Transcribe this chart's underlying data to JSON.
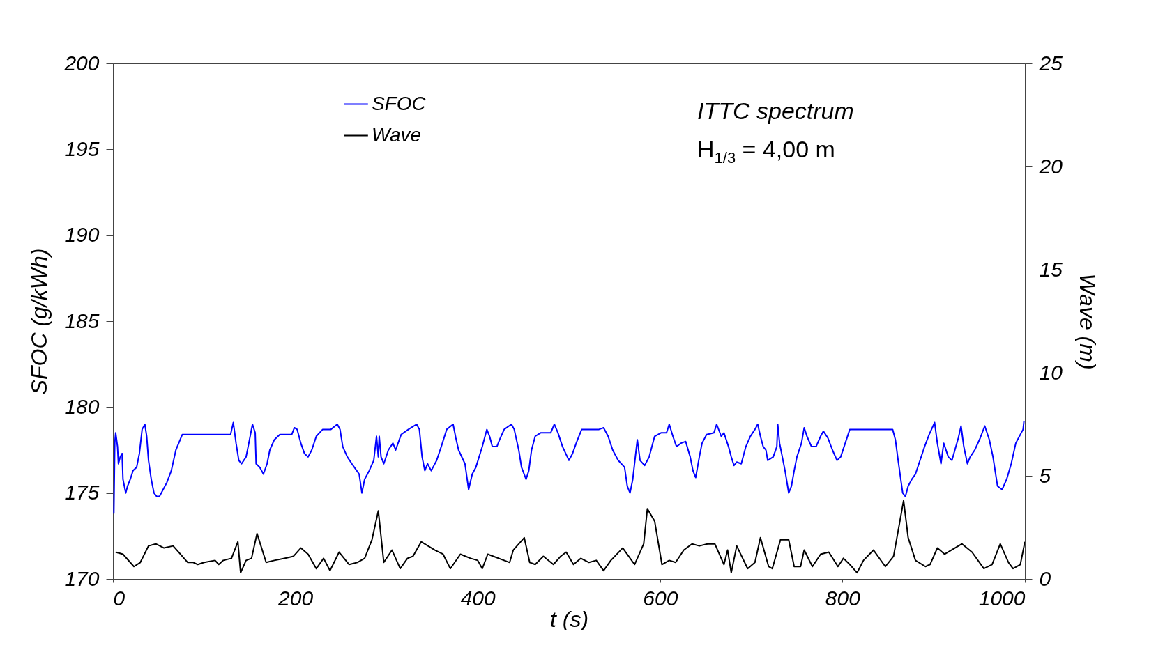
{
  "chart_data": {
    "type": "line",
    "xlabel": "t  (s)",
    "ylabel": "SFOC  (g/kWh)",
    "y2label": "Wave  (m)",
    "xlim": [
      0,
      1000
    ],
    "xticks": [
      0,
      200,
      400,
      600,
      800,
      1000
    ],
    "ylim": [
      170,
      200
    ],
    "yticks": [
      170,
      175,
      180,
      185,
      190,
      195,
      200
    ],
    "y2lim": [
      0,
      25
    ],
    "y2ticks": [
      0,
      5,
      10,
      15,
      20,
      25
    ],
    "grid": false,
    "legend": "top left",
    "marker": "none",
    "line_style": "solid",
    "annotations": [
      "ITTC spectrum",
      "H$_{1/3}$ = 4,00 m"
    ],
    "series": [
      {
        "name": "SFOC",
        "color": "#0000ff",
        "x": [
          1,
          2,
          3,
          5,
          6,
          8,
          10,
          11,
          14,
          16,
          19,
          22,
          26,
          29,
          32,
          35,
          37,
          39,
          42,
          45,
          48,
          51,
          55,
          59,
          64,
          69,
          76,
          84,
          100,
          116,
          129,
          132,
          135,
          138,
          141,
          146,
          149,
          153,
          156,
          157,
          161,
          165,
          169,
          172,
          177,
          183,
          196,
          199,
          202,
          206,
          210,
          214,
          218,
          223,
          230,
          239,
          246,
          249,
          252,
          257,
          262,
          270,
          273,
          276,
          281,
          286,
          289,
          291,
          292,
          294,
          297,
          302,
          307,
          310,
          316,
          324,
          333,
          336,
          339,
          342,
          345,
          349,
          355,
          360,
          366,
          373,
          376,
          379,
          386,
          390,
          394,
          398,
          405,
          410,
          413,
          416,
          421,
          424,
          429,
          437,
          440,
          445,
          448,
          453,
          456,
          459,
          463,
          469,
          480,
          484,
          488,
          493,
          500,
          504,
          508,
          514,
          533,
          538,
          543,
          548,
          554,
          561,
          564,
          567,
          570,
          575,
          578,
          583,
          588,
          594,
          601,
          607,
          610,
          614,
          618,
          623,
          628,
          633,
          636,
          639,
          643,
          646,
          651,
          659,
          662,
          667,
          670,
          675,
          678,
          681,
          684,
          689,
          694,
          699,
          704,
          707,
          710,
          713,
          716,
          718,
          721,
          724,
          728,
          729,
          731,
          734,
          737,
          741,
          744,
          747,
          750,
          755,
          758,
          761,
          766,
          771,
          776,
          779,
          784,
          789,
          794,
          798,
          803,
          808,
          855,
          858,
          861,
          866,
          869,
          872,
          876,
          880,
          885,
          890,
          895,
          901,
          904,
          908,
          911,
          916,
          920,
          927,
          930,
          933,
          937,
          940,
          945,
          951,
          956,
          961,
          965,
          970,
          975,
          980,
          985,
          990,
          994,
          998,
          999
        ],
        "values": [
          173.8,
          177.9,
          178.5,
          177.7,
          176.7,
          177.1,
          177.3,
          175.8,
          175.0,
          175.4,
          175.8,
          176.3,
          176.5,
          177.3,
          178.7,
          179.0,
          178.3,
          176.9,
          175.8,
          175.0,
          174.8,
          174.8,
          175.2,
          175.6,
          176.3,
          177.5,
          178.4,
          178.4,
          178.4,
          178.4,
          178.4,
          179.1,
          177.9,
          176.9,
          176.7,
          177.1,
          177.9,
          179.0,
          178.5,
          176.7,
          176.5,
          176.1,
          176.7,
          177.5,
          178.1,
          178.4,
          178.4,
          178.8,
          178.7,
          177.9,
          177.3,
          177.1,
          177.5,
          178.3,
          178.7,
          178.7,
          179.0,
          178.7,
          177.7,
          177.1,
          176.7,
          176.1,
          175.0,
          175.8,
          176.3,
          176.9,
          178.3,
          177.1,
          178.3,
          177.1,
          176.7,
          177.5,
          177.9,
          177.5,
          178.4,
          178.7,
          179.0,
          178.7,
          177.1,
          176.3,
          176.7,
          176.3,
          176.9,
          177.7,
          178.7,
          179.0,
          178.2,
          177.5,
          176.7,
          175.2,
          176.1,
          176.5,
          177.7,
          178.7,
          178.3,
          177.7,
          177.7,
          178.1,
          178.7,
          179.0,
          178.7,
          177.5,
          176.5,
          175.8,
          176.3,
          177.5,
          178.3,
          178.5,
          178.5,
          179.0,
          178.5,
          177.7,
          176.9,
          177.3,
          177.9,
          178.7,
          178.7,
          178.8,
          178.3,
          177.5,
          176.9,
          176.5,
          175.4,
          175.0,
          175.8,
          178.1,
          176.9,
          176.6,
          177.1,
          178.3,
          178.5,
          178.5,
          179.0,
          178.3,
          177.7,
          177.9,
          178.0,
          177.1,
          176.3,
          175.9,
          177.1,
          177.9,
          178.4,
          178.5,
          179.0,
          178.3,
          178.5,
          177.7,
          177.1,
          176.6,
          176.8,
          176.7,
          177.7,
          178.3,
          178.7,
          179.0,
          178.3,
          177.7,
          177.5,
          176.9,
          177.0,
          177.1,
          177.7,
          179.0,
          177.9,
          177.1,
          176.3,
          175.0,
          175.4,
          176.3,
          177.1,
          177.9,
          178.8,
          178.3,
          177.7,
          177.7,
          178.3,
          178.6,
          178.2,
          177.5,
          176.9,
          177.1,
          177.9,
          178.7,
          178.7,
          178.1,
          176.9,
          175.0,
          174.8,
          175.4,
          175.8,
          176.1,
          176.9,
          177.7,
          178.4,
          179.1,
          177.9,
          176.7,
          177.9,
          177.1,
          176.9,
          178.2,
          178.9,
          177.7,
          176.7,
          177.1,
          177.5,
          178.2,
          178.9,
          178.1,
          177.1,
          175.4,
          175.2,
          175.8,
          176.7,
          177.9,
          178.3,
          178.7,
          179.2
        ]
      },
      {
        "name": "Wave",
        "color": "#000000",
        "axis": "y2",
        "x": [
          3,
          11,
          23,
          30,
          39,
          47,
          56,
          66,
          82,
          88,
          93,
          100,
          112,
          116,
          121,
          130,
          137,
          140,
          146,
          152,
          158,
          168,
          177,
          188,
          198,
          206,
          214,
          223,
          231,
          238,
          248,
          259,
          268,
          276,
          284,
          291,
          297,
          306,
          315,
          323,
          329,
          338,
          353,
          362,
          370,
          381,
          392,
          400,
          405,
          411,
          435,
          439,
          451,
          457,
          463,
          472,
          483,
          491,
          497,
          505,
          513,
          522,
          530,
          538,
          546,
          559,
          572,
          582,
          586,
          594,
          602,
          610,
          617,
          626,
          635,
          643,
          652,
          660,
          670,
          674,
          678,
          684,
          696,
          704,
          710,
          719,
          723,
          732,
          741,
          747,
          754,
          758,
          767,
          776,
          785,
          795,
          801,
          808,
          816,
          823,
          834,
          847,
          856,
          867,
          872,
          880,
          891,
          896,
          904,
          912,
          931,
          942,
          955,
          964,
          973,
          982,
          987,
          995,
          1000
        ],
        "values": [
          1.3,
          1.2,
          0.6,
          0.8,
          1.6,
          1.7,
          1.5,
          1.6,
          0.8,
          0.8,
          0.7,
          0.8,
          0.9,
          0.7,
          0.9,
          1.0,
          1.8,
          0.3,
          0.9,
          1.0,
          2.2,
          0.8,
          0.9,
          1.0,
          1.1,
          1.5,
          1.2,
          0.5,
          1.0,
          0.4,
          1.3,
          0.7,
          0.8,
          1.0,
          1.9,
          3.3,
          0.8,
          1.4,
          0.5,
          1.0,
          1.1,
          1.8,
          1.4,
          1.2,
          0.5,
          1.2,
          1.0,
          0.9,
          0.5,
          1.2,
          0.8,
          1.4,
          2.0,
          0.8,
          0.7,
          1.1,
          0.7,
          1.1,
          1.3,
          0.7,
          1.0,
          0.8,
          0.9,
          0.4,
          0.9,
          1.5,
          0.7,
          1.7,
          3.4,
          2.8,
          0.7,
          0.9,
          0.8,
          1.4,
          1.7,
          1.6,
          1.7,
          1.7,
          0.7,
          1.4,
          0.3,
          1.6,
          0.5,
          0.8,
          2.0,
          0.6,
          0.5,
          1.9,
          1.9,
          0.6,
          0.6,
          1.4,
          0.6,
          1.2,
          1.3,
          0.6,
          1.0,
          0.7,
          0.3,
          0.9,
          1.4,
          0.6,
          1.1,
          3.8,
          2.0,
          0.9,
          0.6,
          0.7,
          1.5,
          1.2,
          1.7,
          1.3,
          0.5,
          0.7,
          1.7,
          0.8,
          0.5,
          0.7,
          1.8
        ]
      }
    ]
  }
}
